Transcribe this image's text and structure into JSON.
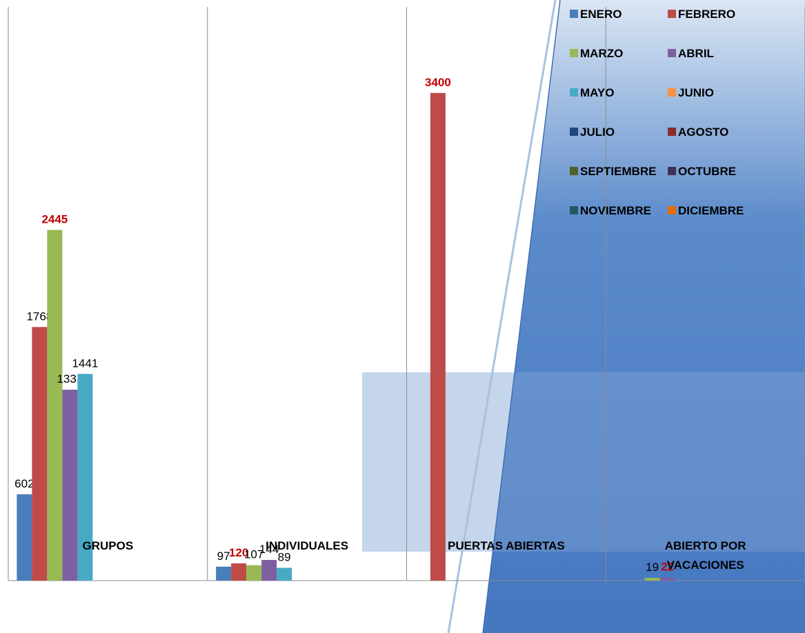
{
  "chart_data": {
    "type": "bar",
    "categories": [
      "GRUPOS",
      "INDIVIDUALES",
      "PUERTAS ABIERTAS",
      "ABIERTO POR VACACIONES"
    ],
    "series": [
      {
        "name": "ENERO",
        "color": "#4a7ebb",
        "values": [
          602,
          97,
          null,
          null
        ]
      },
      {
        "name": "FEBRERO",
        "color": "#be4b48",
        "values": [
          1768,
          120,
          3400,
          null
        ]
      },
      {
        "name": "MARZO",
        "color": "#98b954",
        "values": [
          2445,
          107,
          null,
          19
        ]
      },
      {
        "name": "ABRIL",
        "color": "#7d60a0",
        "values": [
          1331,
          144,
          null,
          22
        ]
      },
      {
        "name": "MAYO",
        "color": "#46aac5",
        "values": [
          1441,
          89,
          null,
          null
        ]
      },
      {
        "name": "JUNIO",
        "color": "#f69240",
        "values": [
          null,
          null,
          null,
          null
        ]
      },
      {
        "name": "JULIO",
        "color": "#1f497d",
        "values": [
          null,
          null,
          null,
          null
        ]
      },
      {
        "name": "AGOSTO",
        "color": "#8c2a28",
        "values": [
          null,
          null,
          null,
          null
        ]
      },
      {
        "name": "SEPTIEMBRE",
        "color": "#4f6228",
        "values": [
          null,
          null,
          null,
          null
        ]
      },
      {
        "name": "OCTUBRE",
        "color": "#3f3151",
        "values": [
          null,
          null,
          null,
          null
        ]
      },
      {
        "name": "NOVIEMBRE",
        "color": "#215968",
        "values": [
          null,
          null,
          null,
          null
        ]
      },
      {
        "name": "DICIEMBRE",
        "color": "#e46c0a",
        "values": [
          null,
          null,
          null,
          null
        ]
      }
    ],
    "emphasized_labels": [
      {
        "series": 2,
        "category": 0
      },
      {
        "series": 1,
        "category": 1
      },
      {
        "series": 1,
        "category": 2
      },
      {
        "series": 3,
        "category": 3
      }
    ],
    "emphasis_color": "#c00000",
    "ylim": [
      0,
      4000
    ],
    "legend": "top-right"
  }
}
